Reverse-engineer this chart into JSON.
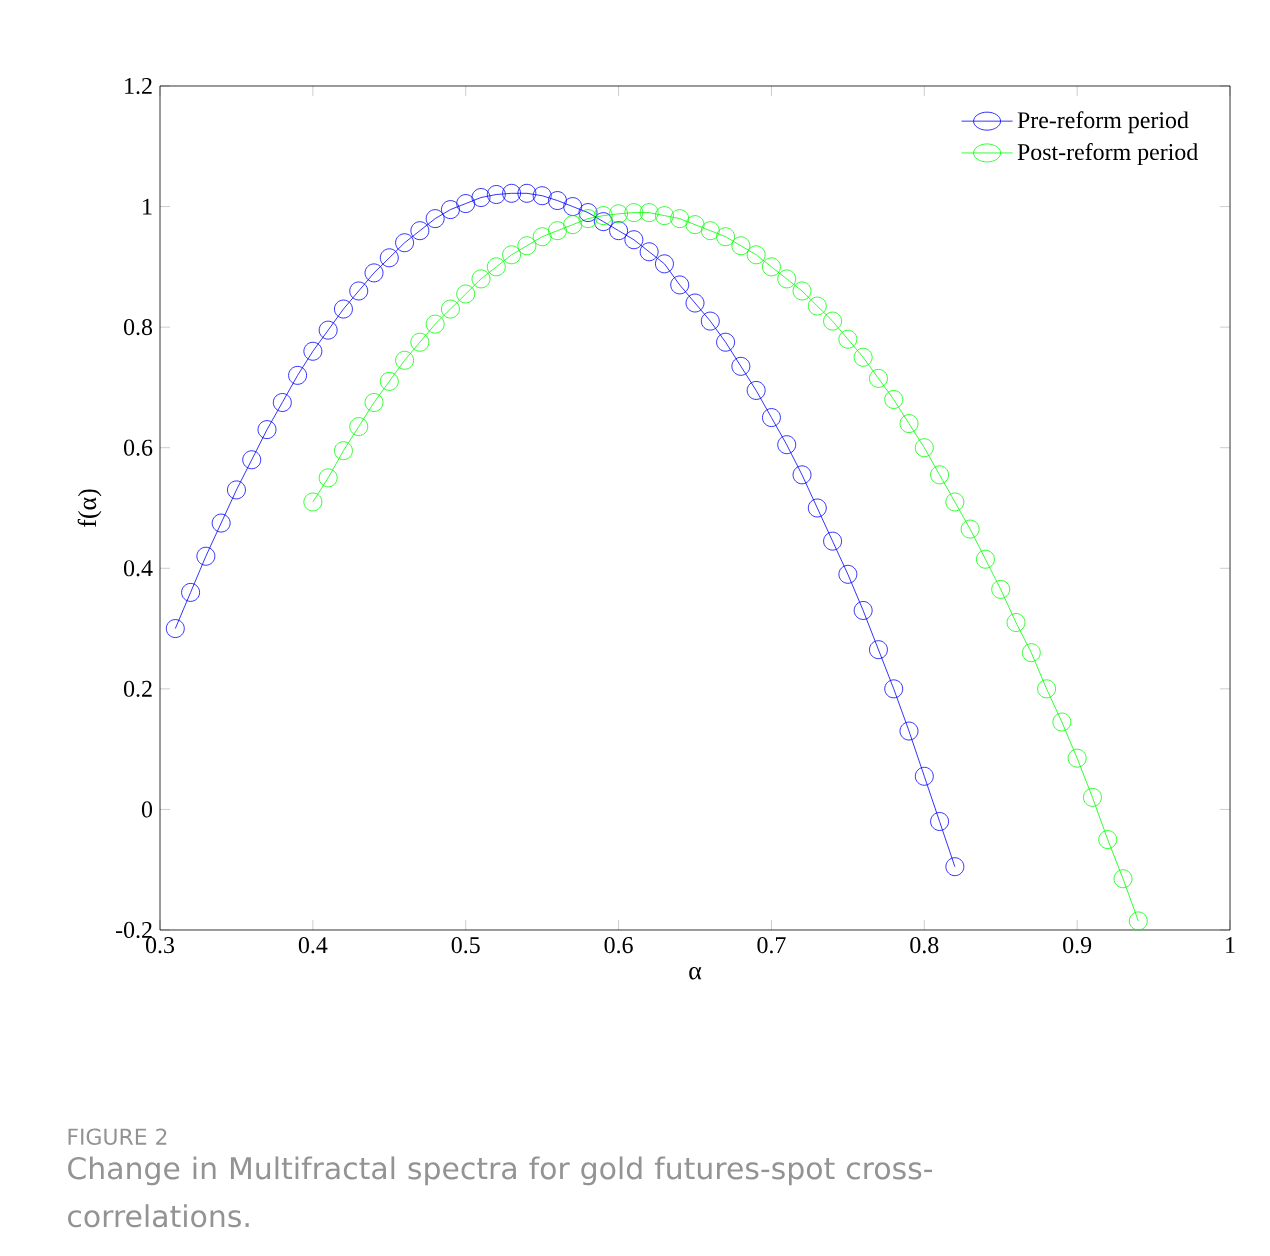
{
  "chart_data": {
    "type": "line",
    "xlabel": "α",
    "ylabel": "f(α)",
    "annotations": [
      "FIGURE 2",
      "Change in Multifractal spectra for gold futures-spot cross-correlations."
    ],
    "x": [
      0.31,
      0.32,
      0.33,
      0.34,
      0.35,
      0.36,
      0.37,
      0.38,
      0.39,
      0.4,
      0.41,
      0.42,
      0.43,
      0.44,
      0.45,
      0.46,
      0.47,
      0.48,
      0.49,
      0.5,
      0.51,
      0.52,
      0.53,
      0.54,
      0.55,
      0.56,
      0.57,
      0.58,
      0.59,
      0.6,
      0.61,
      0.62,
      0.63,
      0.64,
      0.65,
      0.66,
      0.67,
      0.68,
      0.69,
      0.7,
      0.71,
      0.72,
      0.73,
      0.74,
      0.75,
      0.76,
      0.77,
      0.78,
      0.79,
      0.8,
      0.81,
      0.82
    ],
    "series": [
      {
        "name": "Pre-reform period",
        "color": "#0000ff",
        "values": [
          0.3,
          0.36,
          0.42,
          0.475,
          0.53,
          0.58,
          0.63,
          0.675,
          0.72,
          0.76,
          0.795,
          0.83,
          0.86,
          0.89,
          0.915,
          0.94,
          0.96,
          0.98,
          0.995,
          1.005,
          1.015,
          1.02,
          1.022,
          1.022,
          1.018,
          1.01,
          1.0,
          0.99,
          0.975,
          0.96,
          0.945,
          0.925,
          0.905,
          0.87,
          0.84,
          0.81,
          0.775,
          0.735,
          0.695,
          0.65,
          0.605,
          0.555,
          0.5,
          0.445,
          0.39,
          0.33,
          0.265,
          0.2,
          0.13,
          0.055,
          -0.02,
          -0.095
        ]
      },
      {
        "name": "Post-reform period",
        "color": "#00ff00",
        "x": [
          0.4,
          0.41,
          0.42,
          0.43,
          0.44,
          0.45,
          0.46,
          0.47,
          0.48,
          0.49,
          0.5,
          0.51,
          0.52,
          0.53,
          0.54,
          0.55,
          0.56,
          0.57,
          0.58,
          0.59,
          0.6,
          0.61,
          0.62,
          0.63,
          0.64,
          0.65,
          0.66,
          0.67,
          0.68,
          0.69,
          0.7,
          0.71,
          0.72,
          0.73,
          0.74,
          0.75,
          0.76,
          0.77,
          0.78,
          0.79,
          0.8,
          0.81,
          0.82,
          0.83,
          0.84,
          0.85,
          0.86,
          0.87,
          0.88,
          0.89,
          0.9,
          0.91,
          0.92,
          0.93,
          0.94
        ],
        "values": [
          0.51,
          0.55,
          0.595,
          0.635,
          0.675,
          0.71,
          0.745,
          0.775,
          0.805,
          0.83,
          0.855,
          0.88,
          0.9,
          0.92,
          0.935,
          0.95,
          0.96,
          0.97,
          0.98,
          0.985,
          0.988,
          0.99,
          0.99,
          0.985,
          0.98,
          0.97,
          0.96,
          0.95,
          0.935,
          0.92,
          0.9,
          0.88,
          0.86,
          0.835,
          0.81,
          0.78,
          0.75,
          0.715,
          0.68,
          0.64,
          0.6,
          0.555,
          0.51,
          0.465,
          0.415,
          0.365,
          0.31,
          0.26,
          0.2,
          0.145,
          0.085,
          0.02,
          -0.05,
          -0.115,
          -0.185
        ]
      }
    ],
    "xlim": [
      0.3,
      1
    ],
    "ylim": [
      -0.2,
      1.2
    ],
    "xticks": [
      0.3,
      0.4,
      0.5,
      0.6,
      0.7,
      0.8,
      0.9,
      1
    ],
    "yticks": [
      -0.2,
      0,
      0.2,
      0.4,
      0.6,
      0.8,
      1,
      1.2
    ],
    "grid": false,
    "legend": "top right",
    "marker": "circle",
    "line_style": "solid"
  }
}
